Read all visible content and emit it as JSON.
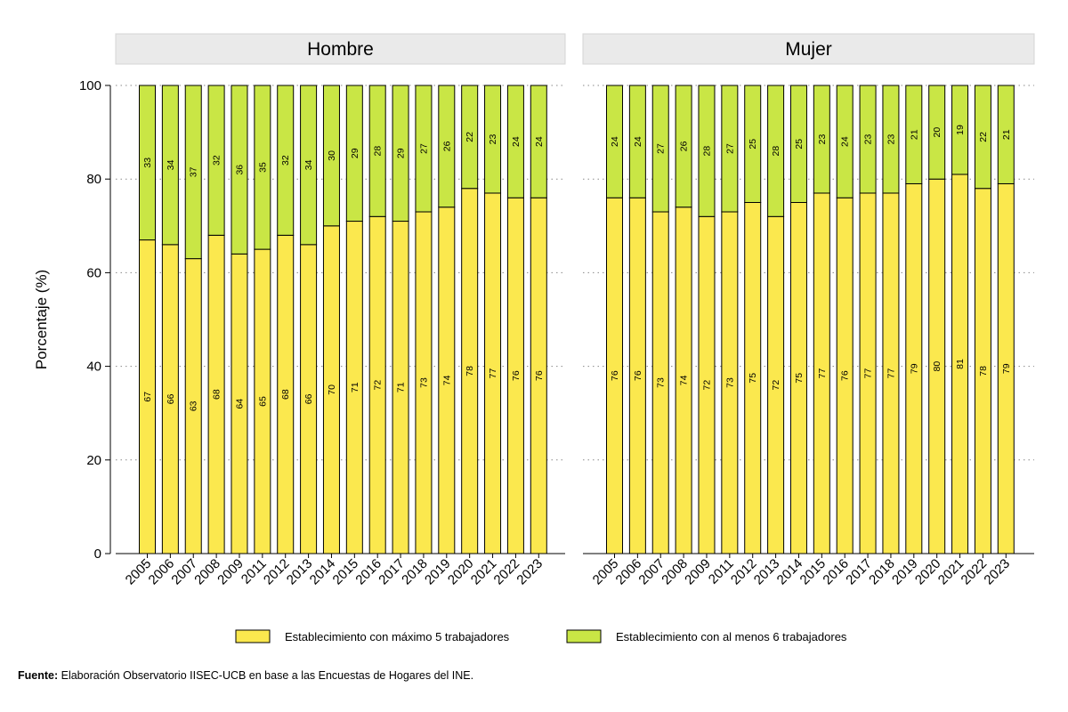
{
  "chart_data": {
    "type": "bar",
    "stacked": true,
    "ylabel": "Porcentaje (%)",
    "ylim": [
      0,
      100
    ],
    "yticks": [
      0,
      20,
      40,
      60,
      80,
      100
    ],
    "grid": true,
    "legend_position": "bottom",
    "series": [
      {
        "name": "Establecimiento con máximo 5 trabajadores",
        "color": "#fbe84e"
      },
      {
        "name": "Establecimiento con al menos 6 trabajadores",
        "color": "#c9e645"
      }
    ],
    "panels": [
      {
        "title": "Hombre",
        "categories": [
          "2005",
          "2006",
          "2007",
          "2008",
          "2009",
          "2011",
          "2012",
          "2013",
          "2014",
          "2015",
          "2016",
          "2017",
          "2018",
          "2019",
          "2020",
          "2021",
          "2022",
          "2023"
        ],
        "values_small": [
          67,
          66,
          63,
          68,
          64,
          65,
          68,
          66,
          70,
          71,
          72,
          71,
          73,
          74,
          78,
          77,
          76,
          76
        ],
        "values_large": [
          33,
          34,
          37,
          32,
          36,
          35,
          32,
          34,
          30,
          29,
          28,
          29,
          27,
          26,
          22,
          23,
          24,
          24
        ]
      },
      {
        "title": "Mujer",
        "categories": [
          "2005",
          "2006",
          "2007",
          "2008",
          "2009",
          "2011",
          "2012",
          "2013",
          "2014",
          "2015",
          "2016",
          "2017",
          "2018",
          "2019",
          "2020",
          "2021",
          "2022",
          "2023"
        ],
        "values_small": [
          76,
          76,
          73,
          74,
          72,
          73,
          75,
          72,
          75,
          77,
          76,
          77,
          77,
          79,
          80,
          81,
          78,
          79
        ],
        "values_large": [
          24,
          24,
          27,
          26,
          28,
          27,
          25,
          28,
          25,
          23,
          24,
          23,
          23,
          21,
          20,
          19,
          22,
          21
        ]
      }
    ]
  },
  "source": {
    "label": "Fuente:",
    "text": " Elaboración Observatorio IISEC-UCB en base a las Encuestas de Hogares del INE."
  }
}
